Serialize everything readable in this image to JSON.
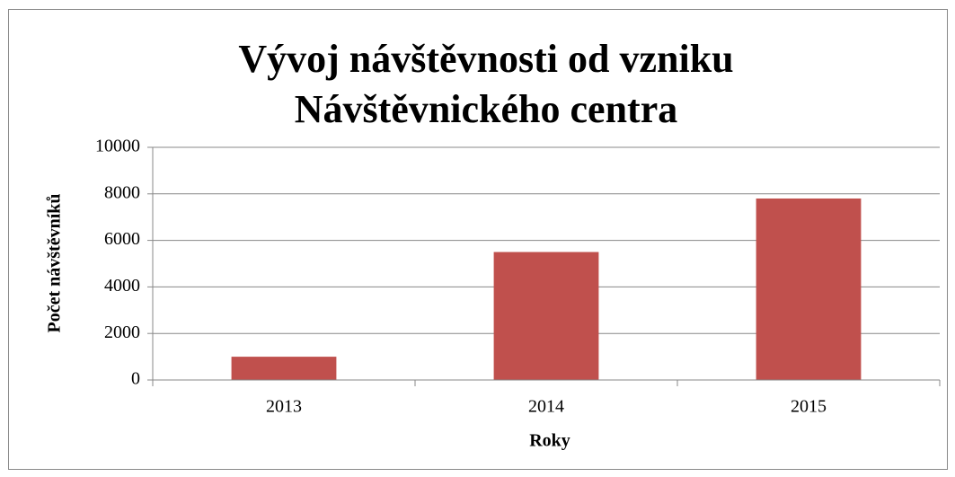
{
  "chart_data": {
    "type": "bar",
    "title": "Vývoj návštěvnosti od vzniku Návštěvnického centra",
    "x_label": "Roky",
    "y_label": "Počet návštěvníků",
    "categories": [
      "2013",
      "2014",
      "2015"
    ],
    "values": [
      1000,
      5500,
      7800
    ],
    "color": "#c0504d",
    "ylim": [
      0,
      10000
    ],
    "yticks": [
      0,
      2000,
      4000,
      6000,
      8000,
      10000
    ],
    "grid": true
  }
}
